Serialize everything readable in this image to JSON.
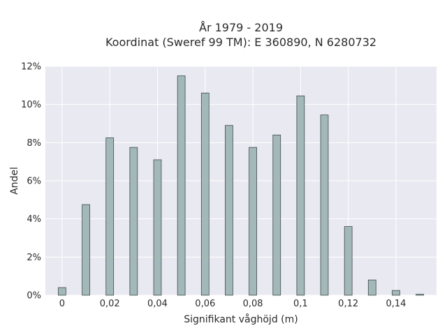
{
  "chart_data": {
    "type": "bar",
    "title_line1": "År 1979 - 2019",
    "title_line2": "Koordinat (Sweref 99 TM): E 360890, N 6280732",
    "xlabel": "Signifikant våghöjd (m)",
    "ylabel": "Andel",
    "x": [
      0,
      0.01,
      0.02,
      0.03,
      0.04,
      0.05,
      0.06,
      0.07,
      0.08,
      0.09,
      0.1,
      0.11,
      0.12,
      0.13,
      0.14,
      0.15
    ],
    "values": [
      0.4,
      4.75,
      8.25,
      7.75,
      7.1,
      11.5,
      10.6,
      8.9,
      7.75,
      8.4,
      10.45,
      9.45,
      3.6,
      0.8,
      0.25,
      0.05
    ],
    "xlim": [
      -0.007,
      0.157
    ],
    "ylim": [
      0,
      12
    ],
    "x_ticks": [
      {
        "value": 0,
        "label": "0"
      },
      {
        "value": 0.02,
        "label": "0,02"
      },
      {
        "value": 0.04,
        "label": "0,04"
      },
      {
        "value": 0.06,
        "label": "0,06"
      },
      {
        "value": 0.08,
        "label": "0,08"
      },
      {
        "value": 0.1,
        "label": "0,1"
      },
      {
        "value": 0.12,
        "label": "0,12"
      },
      {
        "value": 0.14,
        "label": "0,14"
      }
    ],
    "y_ticks": [
      {
        "value": 0,
        "label": "0%"
      },
      {
        "value": 2,
        "label": "2%"
      },
      {
        "value": 4,
        "label": "4%"
      },
      {
        "value": 6,
        "label": "6%"
      },
      {
        "value": 8,
        "label": "8%"
      },
      {
        "value": 10,
        "label": "10%"
      },
      {
        "value": 12,
        "label": "12%"
      }
    ],
    "grid": true,
    "colors": {
      "plot_background": "#e9e9f1",
      "grid": "#ffffff",
      "bar_fill": "#a3b8b9",
      "bar_stroke": "#3f4a4a"
    }
  }
}
